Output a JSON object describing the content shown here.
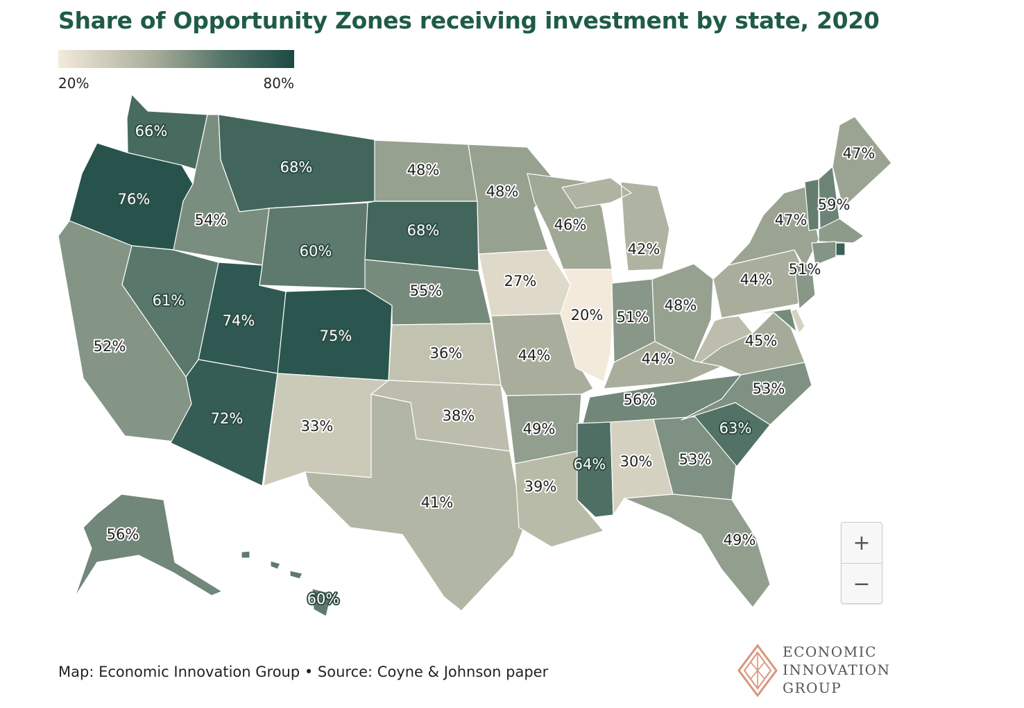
{
  "title": "Share of Opportunity Zones receiving investment by state, 2020",
  "legend": {
    "min_label": "20%",
    "max_label": "80%",
    "min_value": 20,
    "max_value": 80,
    "colors": [
      "#f4eadb",
      "#a9ae9c",
      "#557468",
      "#1b4a45"
    ]
  },
  "source": "Map: Economic Innovation Group • Source: Coyne & Johnson paper",
  "logo": {
    "line1": "ECONOMIC",
    "line2": "INNOVATION",
    "line3": "GROUP",
    "mark_color": "#d9957a"
  },
  "zoom": {
    "in_label": "+",
    "out_label": "−"
  },
  "states": [
    {
      "abbr": "WA",
      "label": "66%",
      "value": 66
    },
    {
      "abbr": "OR",
      "label": "76%",
      "value": 76
    },
    {
      "abbr": "CA",
      "label": "52%",
      "value": 52
    },
    {
      "abbr": "ID",
      "label": "54%",
      "value": 54
    },
    {
      "abbr": "NV",
      "label": "61%",
      "value": 61
    },
    {
      "abbr": "MT",
      "label": "68%",
      "value": 68
    },
    {
      "abbr": "WY",
      "label": "60%",
      "value": 60
    },
    {
      "abbr": "UT",
      "label": "74%",
      "value": 74
    },
    {
      "abbr": "CO",
      "label": "75%",
      "value": 75
    },
    {
      "abbr": "AZ",
      "label": "72%",
      "value": 72
    },
    {
      "abbr": "NM",
      "label": "33%",
      "value": 33
    },
    {
      "abbr": "ND",
      "label": "48%",
      "value": 48
    },
    {
      "abbr": "SD",
      "label": "68%",
      "value": 68
    },
    {
      "abbr": "NE",
      "label": "55%",
      "value": 55
    },
    {
      "abbr": "KS",
      "label": "36%",
      "value": 36
    },
    {
      "abbr": "OK",
      "label": "38%",
      "value": 38
    },
    {
      "abbr": "TX",
      "label": "41%",
      "value": 41
    },
    {
      "abbr": "MN",
      "label": "48%",
      "value": 48
    },
    {
      "abbr": "IA",
      "label": "27%",
      "value": 27
    },
    {
      "abbr": "MO",
      "label": "44%",
      "value": 44
    },
    {
      "abbr": "AR",
      "label": "49%",
      "value": 49
    },
    {
      "abbr": "LA",
      "label": "39%",
      "value": 39
    },
    {
      "abbr": "WI",
      "label": "46%",
      "value": 46
    },
    {
      "abbr": "IL",
      "label": "20%",
      "value": 20
    },
    {
      "abbr": "MI",
      "label": "42%",
      "value": 42
    },
    {
      "abbr": "IN",
      "label": "51%",
      "value": 51
    },
    {
      "abbr": "OH",
      "label": "48%",
      "value": 48
    },
    {
      "abbr": "KY",
      "label": "44%",
      "value": 44
    },
    {
      "abbr": "TN",
      "label": "56%",
      "value": 56
    },
    {
      "abbr": "MS",
      "label": "64%",
      "value": 64
    },
    {
      "abbr": "AL",
      "label": "30%",
      "value": 30
    },
    {
      "abbr": "GA",
      "label": "53%",
      "value": 53
    },
    {
      "abbr": "FL",
      "label": "49%",
      "value": 49
    },
    {
      "abbr": "SC",
      "label": "63%",
      "value": 63
    },
    {
      "abbr": "NC",
      "label": "53%",
      "value": 53
    },
    {
      "abbr": "VA",
      "label": "45%",
      "value": 45
    },
    {
      "abbr": "WV",
      "label": null,
      "value": 38
    },
    {
      "abbr": "PA",
      "label": "44%",
      "value": 44
    },
    {
      "abbr": "NY",
      "label": "47%",
      "value": 47
    },
    {
      "abbr": "NJ",
      "label": "51%",
      "value": 51
    },
    {
      "abbr": "VT",
      "label": "59%",
      "value": 59
    },
    {
      "abbr": "NH",
      "label": null,
      "value": 57
    },
    {
      "abbr": "ME",
      "label": "47%",
      "value": 47
    },
    {
      "abbr": "MA",
      "label": null,
      "value": 50
    },
    {
      "abbr": "CT",
      "label": null,
      "value": 52
    },
    {
      "abbr": "RI",
      "label": null,
      "value": 70
    },
    {
      "abbr": "MD",
      "label": null,
      "value": 55
    },
    {
      "abbr": "DE",
      "label": null,
      "value": 30
    },
    {
      "abbr": "AK",
      "label": "56%",
      "value": 56
    },
    {
      "abbr": "HI",
      "label": "60%",
      "value": 60
    }
  ]
}
